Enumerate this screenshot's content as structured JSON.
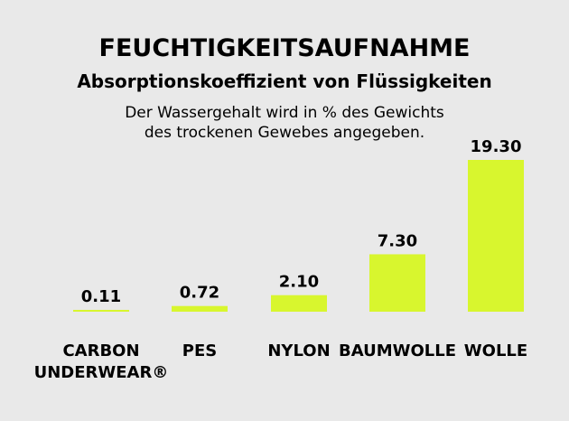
{
  "chart_data": {
    "type": "bar",
    "title": "FEUCHTIGKEITSAUFNAHME",
    "subtitle": "Absorptionskoeffizient von Flüssigkeiten",
    "note": [
      "Der Wassergehalt wird in % des Gewichts",
      "des trockenen Gewebes angegeben."
    ],
    "categories": [
      [
        "CARBON",
        "UNDERWEAR®"
      ],
      [
        "PES"
      ],
      [
        "NYLON"
      ],
      [
        "BAUMWOLLE"
      ],
      [
        "WOLLE"
      ]
    ],
    "values": [
      0.11,
      0.72,
      2.1,
      7.3,
      19.3
    ],
    "value_labels": [
      "0.11",
      "0.72",
      "2.10",
      "7.30",
      "19.30"
    ],
    "ylim": [
      0,
      19.3
    ],
    "grid": false,
    "bar_color": "#d8f62e",
    "background": "#e9e9e9"
  }
}
